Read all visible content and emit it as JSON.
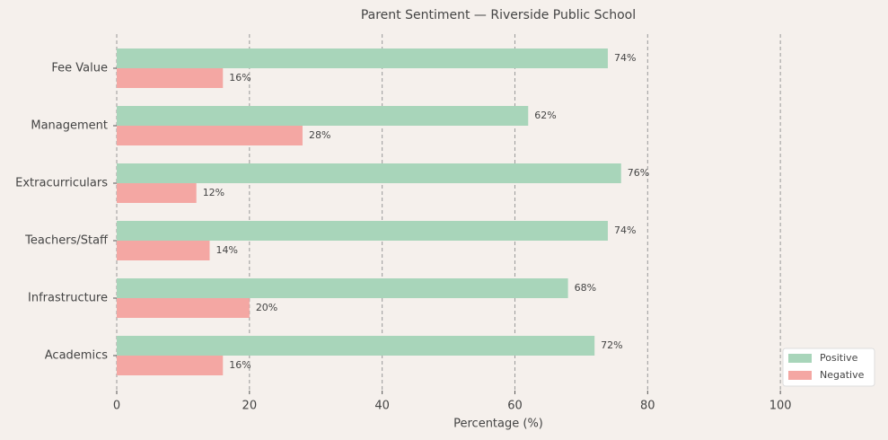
{
  "chart_data": {
    "type": "bar",
    "orientation": "horizontal",
    "title": "Parent Sentiment — Riverside Public School",
    "x_label": "Percentage (%)",
    "categories": [
      "Fee Value",
      "Management",
      "Extracurriculars",
      "Teachers/Staff",
      "Infrastructure",
      "Academics"
    ],
    "series": [
      {
        "name": "Positive",
        "color": "#a8d5ba",
        "values": [
          74,
          62,
          76,
          74,
          68,
          72
        ],
        "value_labels": [
          "74%",
          "62%",
          "76%",
          "74%",
          "68%",
          "72%"
        ]
      },
      {
        "name": "Negative",
        "color": "#f4a7a3",
        "values": [
          16,
          28,
          12,
          14,
          20,
          16
        ],
        "value_labels": [
          "16%",
          "28%",
          "12%",
          "14%",
          "20%",
          "16%"
        ]
      }
    ],
    "xlim": [
      0,
      115
    ],
    "xticks": [
      0,
      20,
      40,
      60,
      80,
      100
    ],
    "grid": true,
    "legend": "lower right"
  }
}
